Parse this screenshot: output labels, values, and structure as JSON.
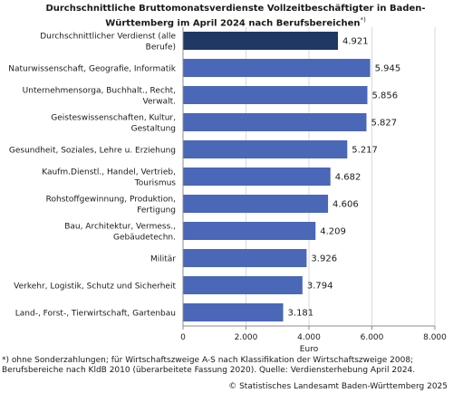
{
  "chart_data": {
    "type": "bar",
    "orientation": "horizontal",
    "title": "Durchschnittliche Bruttomonatsverdienste Vollzeitbeschäftigter in Baden-Württemberg im April 2024 nach Berufsbereichen",
    "title_marker": "*)",
    "xlabel": "Euro",
    "xlim": [
      0,
      8000
    ],
    "xticks": [
      0,
      2000,
      4000,
      6000,
      8000
    ],
    "xtick_labels": [
      "0",
      "2.000",
      "4.000",
      "6.000",
      "8.000"
    ],
    "grid": true,
    "categories": [
      [
        "Durchschnittlicher Verdienst (alle",
        "Berufe)"
      ],
      [
        "Naturwissenschaft, Geografie, Informatik"
      ],
      [
        "Unternehmensorga, Buchhalt., Recht,",
        "Verwalt."
      ],
      [
        "Geisteswissenschaften, Kultur,",
        "Gestaltung"
      ],
      [
        "Gesundheit, Soziales, Lehre u. Erziehung"
      ],
      [
        "Kaufm.Dienstl., Handel, Vertrieb,",
        "Tourismus"
      ],
      [
        "Rohstoffgewinnung, Produktion,",
        "Fertigung"
      ],
      [
        "Bau, Architektur, Vermess.,",
        "Gebäudetechn."
      ],
      [
        "Militär"
      ],
      [
        "Verkehr, Logistik, Schutz und Sicherheit"
      ],
      [
        "Land-, Forst-, Tierwirtschaft, Gartenbau"
      ]
    ],
    "values": [
      4921,
      5945,
      5856,
      5827,
      5217,
      4682,
      4606,
      4209,
      3926,
      3794,
      3181
    ],
    "value_labels": [
      "4.921",
      "5.945",
      "5.856",
      "5.827",
      "5.217",
      "4.682",
      "4.606",
      "4.209",
      "3.926",
      "3.794",
      "3.181"
    ],
    "highlight_index": 0,
    "colors": {
      "highlight": "#1f3864",
      "bar": "#4a67b8",
      "grid": "#d9d9d9",
      "axis": "#8c8c8c"
    }
  },
  "footnote": {
    "line1": "*) ohne Sonderzahlungen; für Wirtschaftszweige A-S nach Klassifikation der Wirtschaftszweige 2008;",
    "line2": "Berufsbereiche nach KldB 2010 (überarbeitete Fassung 2020). Quelle: Verdiensterhebung April 2024."
  },
  "copyright": "© Statistisches Landesamt Baden-Württemberg 2025"
}
